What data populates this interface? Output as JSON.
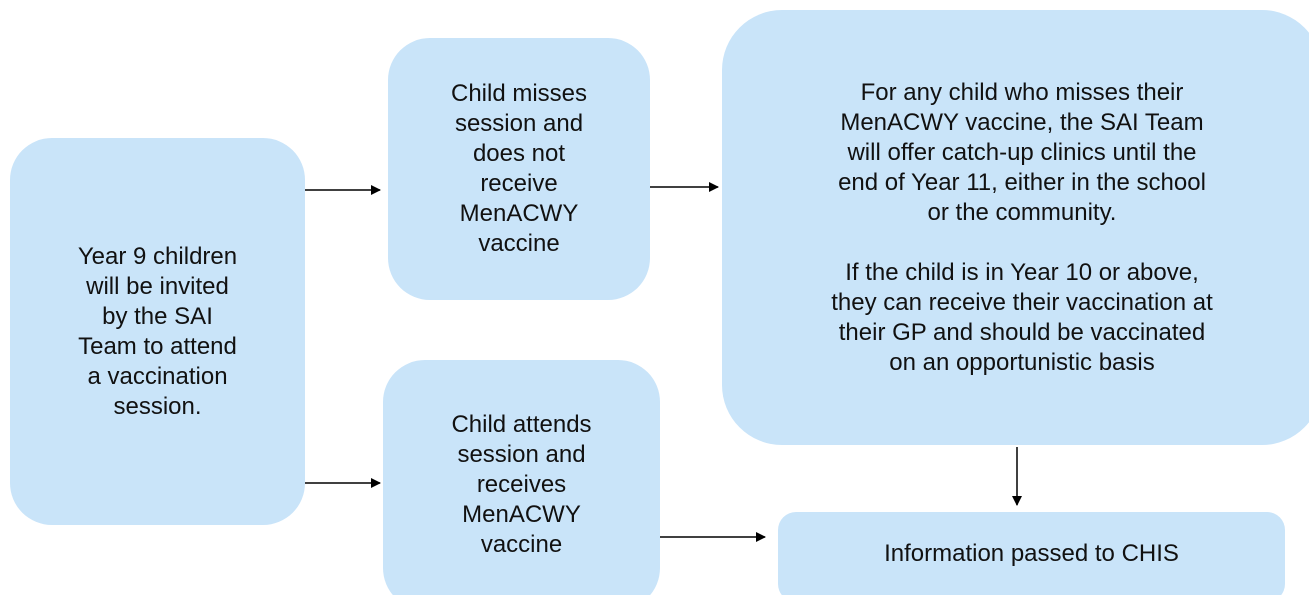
{
  "nodes": [
    {
      "lines": [
        "Year 9 children",
        "will be invited",
        "by the SAI",
        "Team to attend",
        "a vaccination",
        "session."
      ]
    },
    {
      "lines": [
        "Child misses",
        "session and",
        "does not",
        "receive",
        "MenACWY",
        "vaccine"
      ]
    },
    {
      "paragraphs": [
        [
          "For any child who misses their",
          "MenACWY vaccine, the SAI Team",
          "will offer catch-up clinics until the",
          "end of Year 11, either in the school",
          "or the community."
        ],
        [
          "If the child is in Year 10 or above,",
          "they can receive their vaccination at",
          "their GP and should be vaccinated",
          "on an opportunistic basis"
        ]
      ]
    },
    {
      "lines": [
        "Child attends",
        "session and",
        "receives",
        "MenACWY",
        "vaccine"
      ]
    },
    {
      "lines": [
        "Information passed to CHIS"
      ]
    }
  ]
}
